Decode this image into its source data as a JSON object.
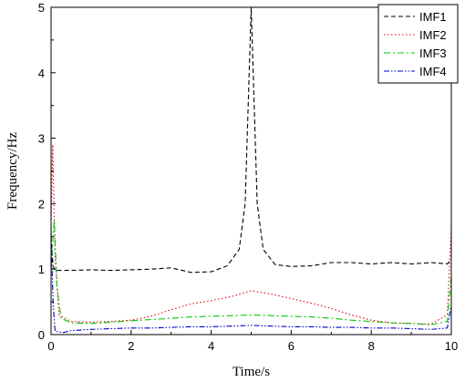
{
  "chart_data": {
    "type": "line",
    "title": "",
    "xlabel": "Time/s",
    "ylabel": "Frequency/Hz",
    "xlim": [
      0,
      10
    ],
    "ylim": [
      0,
      5
    ],
    "xticks": [
      0,
      2,
      4,
      6,
      8,
      10
    ],
    "yticks": [
      0,
      1,
      2,
      3,
      4,
      5
    ],
    "grid": false,
    "legend_position": "top-right",
    "series": [
      {
        "name": "IMF1",
        "color": "#000000",
        "style": "dash",
        "points": [
          [
            0,
            1.5
          ],
          [
            0.05,
            1.05
          ],
          [
            0.1,
            0.98
          ],
          [
            0.5,
            0.98
          ],
          [
            1,
            0.99
          ],
          [
            1.5,
            0.98
          ],
          [
            2,
            0.99
          ],
          [
            2.5,
            1.0
          ],
          [
            3,
            1.02
          ],
          [
            3.5,
            0.95
          ],
          [
            4,
            0.96
          ],
          [
            4.4,
            1.05
          ],
          [
            4.7,
            1.3
          ],
          [
            4.85,
            2.0
          ],
          [
            4.95,
            4.0
          ],
          [
            5,
            5.0
          ],
          [
            5.05,
            4.0
          ],
          [
            5.15,
            2.0
          ],
          [
            5.3,
            1.3
          ],
          [
            5.6,
            1.07
          ],
          [
            6,
            1.04
          ],
          [
            6.5,
            1.05
          ],
          [
            7,
            1.1
          ],
          [
            7.5,
            1.1
          ],
          [
            8,
            1.08
          ],
          [
            8.5,
            1.1
          ],
          [
            9,
            1.08
          ],
          [
            9.5,
            1.1
          ],
          [
            9.9,
            1.08
          ],
          [
            10,
            1.15
          ]
        ]
      },
      {
        "name": "IMF2",
        "color": "#e8000b",
        "style": "dot",
        "points": [
          [
            0,
            1.7
          ],
          [
            0.04,
            2.9
          ],
          [
            0.1,
            1.2
          ],
          [
            0.2,
            0.3
          ],
          [
            0.5,
            0.2
          ],
          [
            1,
            0.19
          ],
          [
            1.5,
            0.2
          ],
          [
            2,
            0.22
          ],
          [
            2.5,
            0.28
          ],
          [
            3,
            0.38
          ],
          [
            3.5,
            0.47
          ],
          [
            4,
            0.52
          ],
          [
            4.5,
            0.58
          ],
          [
            5,
            0.67
          ],
          [
            5.5,
            0.62
          ],
          [
            6,
            0.55
          ],
          [
            6.5,
            0.48
          ],
          [
            7,
            0.4
          ],
          [
            7.5,
            0.3
          ],
          [
            8,
            0.22
          ],
          [
            8.5,
            0.18
          ],
          [
            9,
            0.17
          ],
          [
            9.5,
            0.16
          ],
          [
            9.9,
            0.3
          ],
          [
            10,
            1.65
          ]
        ]
      },
      {
        "name": "IMF3",
        "color": "#00c800",
        "style": "dashdot",
        "points": [
          [
            0,
            1.0
          ],
          [
            0.08,
            1.75
          ],
          [
            0.15,
            0.7
          ],
          [
            0.25,
            0.25
          ],
          [
            0.5,
            0.18
          ],
          [
            1,
            0.17
          ],
          [
            1.5,
            0.19
          ],
          [
            2,
            0.21
          ],
          [
            2.5,
            0.23
          ],
          [
            3,
            0.25
          ],
          [
            3.5,
            0.27
          ],
          [
            4,
            0.28
          ],
          [
            4.5,
            0.29
          ],
          [
            5,
            0.3
          ],
          [
            5.5,
            0.29
          ],
          [
            6,
            0.28
          ],
          [
            6.5,
            0.27
          ],
          [
            7,
            0.25
          ],
          [
            7.5,
            0.22
          ],
          [
            8,
            0.2
          ],
          [
            8.5,
            0.18
          ],
          [
            9,
            0.17
          ],
          [
            9.5,
            0.15
          ],
          [
            9.9,
            0.2
          ],
          [
            10,
            0.9
          ]
        ]
      },
      {
        "name": "IMF4",
        "color": "#0000c8",
        "style": "dashdotdot",
        "points": [
          [
            0,
            1.6
          ],
          [
            0.05,
            0.5
          ],
          [
            0.1,
            0.05
          ],
          [
            0.3,
            0.03
          ],
          [
            0.5,
            0.06
          ],
          [
            1,
            0.08
          ],
          [
            1.5,
            0.09
          ],
          [
            2,
            0.1
          ],
          [
            2.5,
            0.1
          ],
          [
            3,
            0.11
          ],
          [
            3.5,
            0.12
          ],
          [
            4,
            0.12
          ],
          [
            4.5,
            0.13
          ],
          [
            5,
            0.14
          ],
          [
            5.5,
            0.13
          ],
          [
            6,
            0.12
          ],
          [
            6.5,
            0.12
          ],
          [
            7,
            0.11
          ],
          [
            7.5,
            0.11
          ],
          [
            8,
            0.1
          ],
          [
            8.5,
            0.1
          ],
          [
            9,
            0.09
          ],
          [
            9.5,
            0.08
          ],
          [
            9.9,
            0.1
          ],
          [
            10,
            0.45
          ]
        ]
      }
    ]
  }
}
